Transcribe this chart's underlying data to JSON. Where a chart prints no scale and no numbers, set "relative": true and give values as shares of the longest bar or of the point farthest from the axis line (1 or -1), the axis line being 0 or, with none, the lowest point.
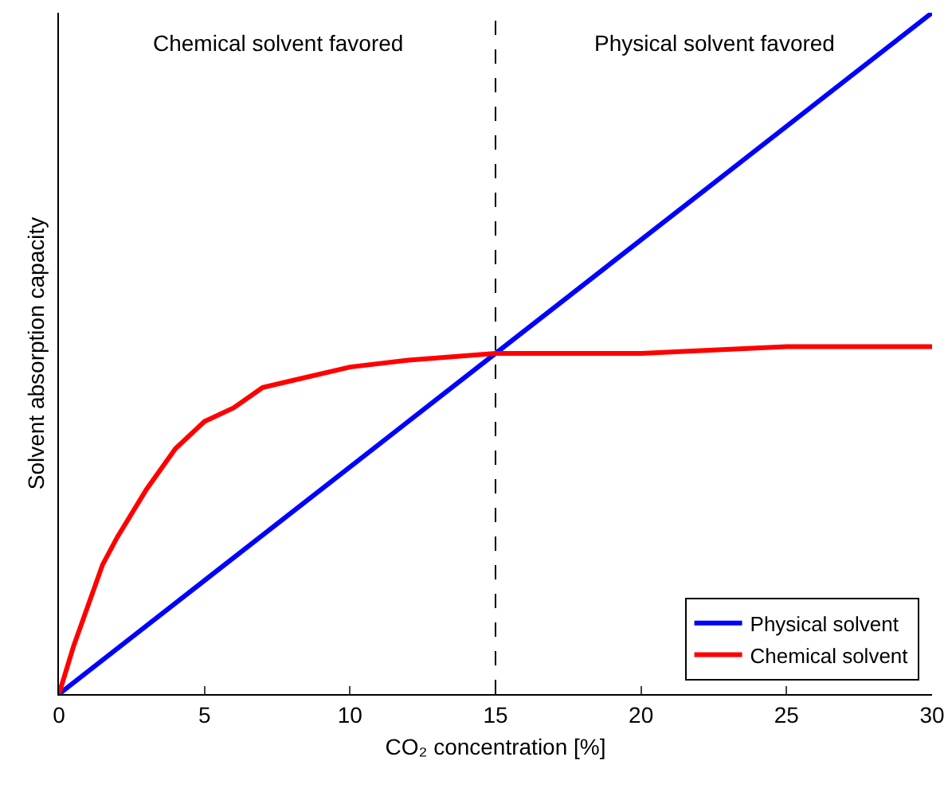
{
  "chart_data": {
    "type": "line",
    "relative": true,
    "xlabel": "CO₂ concentration [%]",
    "ylabel": "Solvent absorption capacity",
    "xlim": [
      0,
      30
    ],
    "xticks": [
      0,
      5,
      10,
      15,
      20,
      25,
      30
    ],
    "grid": false,
    "legend": "bottom right",
    "marker": "none",
    "line_style": "solid",
    "annotations": [
      "Chemical solvent favored",
      "Physical solvent favored"
    ],
    "ref_lines": [
      {
        "axis": "x",
        "value": 15,
        "color": "#000000",
        "line_style": "dashed"
      }
    ],
    "series": [
      {
        "name": "Physical solvent",
        "color": "#0000ff",
        "x": [
          0,
          30
        ],
        "values": [
          0,
          1
        ]
      },
      {
        "name": "Chemical solvent",
        "color": "#ff0000",
        "x": [
          0,
          0.5,
          1,
          1.5,
          2,
          3,
          4,
          5,
          6,
          7,
          8,
          10,
          12,
          15,
          20,
          25,
          30
        ],
        "values": [
          0,
          0.07,
          0.13,
          0.19,
          0.23,
          0.3,
          0.36,
          0.4,
          0.42,
          0.45,
          0.46,
          0.48,
          0.49,
          0.5,
          0.5,
          0.51,
          0.51
        ]
      }
    ]
  }
}
